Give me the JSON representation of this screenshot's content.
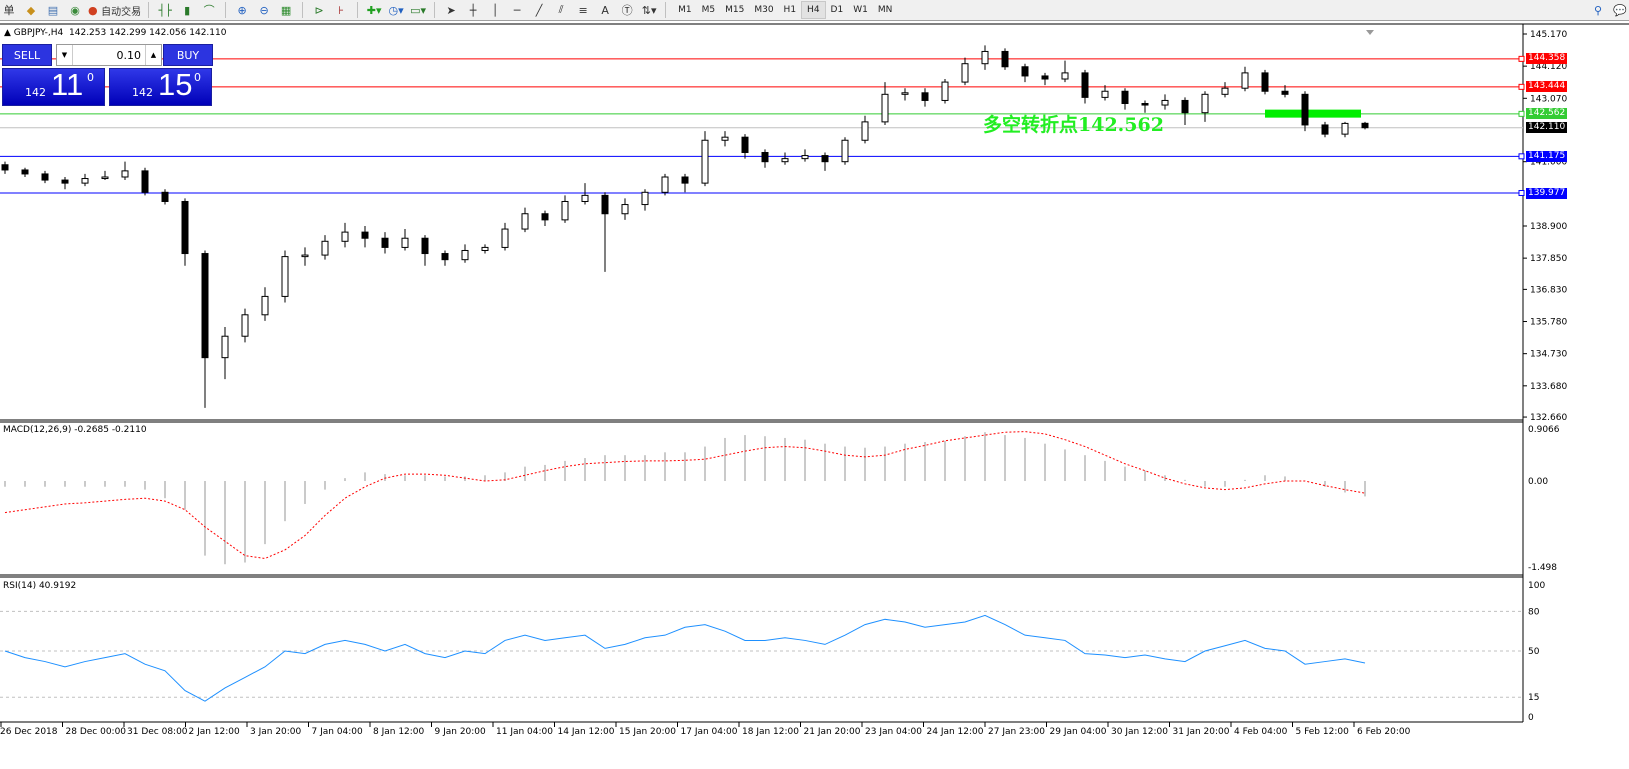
{
  "toolbar": {
    "auto_trading": "自动交易",
    "first_char": "单",
    "timeframes": [
      "M1",
      "M5",
      "M15",
      "M30",
      "H1",
      "H4",
      "D1",
      "W1",
      "MN"
    ],
    "active_timeframe": "H4"
  },
  "chart_header": {
    "symbol": "▲ GBPJPY-,H4",
    "ohlc": "142.253 142.299 142.056 142.110"
  },
  "one_click": {
    "sell": "SELL",
    "buy": "BUY",
    "lot": "0.10",
    "sell_prefix": "142",
    "sell_big": "11",
    "sell_sup": "0",
    "buy_prefix": "142",
    "buy_big": "15",
    "buy_sup": "0"
  },
  "annotation": {
    "text": "多空转折点142.562",
    "color": "#22ee22"
  },
  "levels": [
    {
      "price": "144.358",
      "color": "#ff0000"
    },
    {
      "price": "143.444",
      "color": "#ff0000"
    },
    {
      "price": "142.562",
      "color": "#33cc33"
    },
    {
      "price": "141.175",
      "color": "#0000ff"
    },
    {
      "price": "139.977",
      "color": "#0000ff"
    }
  ],
  "current_price": "142.110",
  "chart_data": [
    {
      "type": "candlestick",
      "title": "GBPJPY-,H4",
      "ylim": [
        132.66,
        145.17
      ],
      "yticks": [
        "145.170",
        "144.120",
        "143.070",
        "141.000",
        "138.900",
        "137.850",
        "136.830",
        "135.780",
        "134.730",
        "133.680",
        "132.660"
      ],
      "xticks": [
        "26 Dec 2018",
        "28 Dec 00:00",
        "31 Dec 08:00",
        "2 Jan 12:00",
        "3 Jan 20:00",
        "7 Jan 04:00",
        "8 Jan 12:00",
        "9 Jan 20:00",
        "11 Jan 04:00",
        "14 Jan 12:00",
        "15 Jan 20:00",
        "17 Jan 04:00",
        "18 Jan 12:00",
        "21 Jan 20:00",
        "23 Jan 04:00",
        "24 Jan 12:00",
        "27 Jan 23:00",
        "29 Jan 04:00",
        "30 Jan 12:00",
        "31 Jan 20:00",
        "4 Feb 04:00",
        "5 Feb 12:00",
        "6 Feb 20:00"
      ],
      "ohlc": [
        [
          140.9,
          141.0,
          140.6,
          140.73
        ],
        [
          140.73,
          140.8,
          140.5,
          140.6
        ],
        [
          140.6,
          140.7,
          140.3,
          140.4
        ],
        [
          140.4,
          140.5,
          140.1,
          140.3
        ],
        [
          140.3,
          140.6,
          140.2,
          140.45
        ],
        [
          140.45,
          140.7,
          140.4,
          140.5
        ],
        [
          140.5,
          141.0,
          140.4,
          140.7
        ],
        [
          140.7,
          140.8,
          139.9,
          140.0
        ],
        [
          140.0,
          140.1,
          139.6,
          139.7
        ],
        [
          139.7,
          139.8,
          137.6,
          138.0
        ],
        [
          138.0,
          138.1,
          132.96,
          134.6
        ],
        [
          134.6,
          135.6,
          133.9,
          135.3
        ],
        [
          135.3,
          136.2,
          135.1,
          136.0
        ],
        [
          136.0,
          136.9,
          135.8,
          136.6
        ],
        [
          136.6,
          138.1,
          136.4,
          137.9
        ],
        [
          137.9,
          138.2,
          137.6,
          137.95
        ],
        [
          137.95,
          138.6,
          137.8,
          138.4
        ],
        [
          138.4,
          139.0,
          138.2,
          138.7
        ],
        [
          138.7,
          138.9,
          138.2,
          138.5
        ],
        [
          138.5,
          138.7,
          138.0,
          138.2
        ],
        [
          138.2,
          138.8,
          138.1,
          138.5
        ],
        [
          138.5,
          138.6,
          137.6,
          138.0
        ],
        [
          138.0,
          138.1,
          137.6,
          137.8
        ],
        [
          137.8,
          138.3,
          137.7,
          138.1
        ],
        [
          138.1,
          138.3,
          138.0,
          138.2
        ],
        [
          138.2,
          139.0,
          138.1,
          138.8
        ],
        [
          138.8,
          139.5,
          138.7,
          139.3
        ],
        [
          139.3,
          139.4,
          138.9,
          139.1
        ],
        [
          139.1,
          139.9,
          139.0,
          139.7
        ],
        [
          139.7,
          140.3,
          139.6,
          139.9
        ],
        [
          139.9,
          140.0,
          137.4,
          139.3
        ],
        [
          139.3,
          139.8,
          139.1,
          139.6
        ],
        [
          139.6,
          140.1,
          139.4,
          140.0
        ],
        [
          140.0,
          140.6,
          139.9,
          140.5
        ],
        [
          140.5,
          140.6,
          140.0,
          140.3
        ],
        [
          140.3,
          142.0,
          140.2,
          141.7
        ],
        [
          141.7,
          142.0,
          141.5,
          141.8
        ],
        [
          141.8,
          141.9,
          141.1,
          141.3
        ],
        [
          141.3,
          141.4,
          140.8,
          141.0
        ],
        [
          141.0,
          141.3,
          140.9,
          141.1
        ],
        [
          141.1,
          141.4,
          141.0,
          141.2
        ],
        [
          141.2,
          141.3,
          140.7,
          141.0
        ],
        [
          141.0,
          141.8,
          140.9,
          141.7
        ],
        [
          141.7,
          142.5,
          141.6,
          142.3
        ],
        [
          142.3,
          143.6,
          142.2,
          143.2
        ],
        [
          143.2,
          143.4,
          143.0,
          143.25
        ],
        [
          143.25,
          143.4,
          142.8,
          143.0
        ],
        [
          143.0,
          143.7,
          142.9,
          143.6
        ],
        [
          143.6,
          144.4,
          143.5,
          144.2
        ],
        [
          144.2,
          144.8,
          144.0,
          144.6
        ],
        [
          144.6,
          144.7,
          144.0,
          144.1
        ],
        [
          144.1,
          144.2,
          143.6,
          143.8
        ],
        [
          143.8,
          143.9,
          143.5,
          143.7
        ],
        [
          143.7,
          144.3,
          143.6,
          143.9
        ],
        [
          143.9,
          144.0,
          142.9,
          143.1
        ],
        [
          143.1,
          143.5,
          143.0,
          143.3
        ],
        [
          143.3,
          143.4,
          142.7,
          142.9
        ],
        [
          142.9,
          143.0,
          142.6,
          142.85
        ],
        [
          142.85,
          143.2,
          142.7,
          143.0
        ],
        [
          143.0,
          143.1,
          142.2,
          142.6
        ],
        [
          142.6,
          143.3,
          142.3,
          143.2
        ],
        [
          143.2,
          143.6,
          143.1,
          143.4
        ],
        [
          143.4,
          144.1,
          143.3,
          143.9
        ],
        [
          143.9,
          144.0,
          143.2,
          143.3
        ],
        [
          143.3,
          143.5,
          143.1,
          143.2
        ],
        [
          143.2,
          143.3,
          142.0,
          142.2
        ],
        [
          142.2,
          142.3,
          141.8,
          141.9
        ],
        [
          141.9,
          142.3,
          141.8,
          142.25
        ],
        [
          142.253,
          142.299,
          142.056,
          142.11
        ]
      ]
    },
    {
      "type": "bar+line",
      "title": "MACD(12,26,9) -0.2685 -0.2110",
      "yticks": [
        "0.9066",
        "0.00",
        "-1.498"
      ],
      "ylim": [
        -1.498,
        0.9066
      ],
      "macd": [
        -0.1,
        -0.1,
        -0.1,
        -0.1,
        -0.1,
        -0.1,
        -0.1,
        -0.15,
        -0.3,
        -0.5,
        -1.3,
        -1.45,
        -1.42,
        -1.1,
        -0.7,
        -0.4,
        -0.15,
        0.05,
        0.15,
        0.12,
        0.1,
        0.1,
        0.08,
        0.08,
        0.1,
        0.15,
        0.25,
        0.28,
        0.35,
        0.4,
        0.45,
        0.45,
        0.45,
        0.5,
        0.5,
        0.6,
        0.75,
        0.8,
        0.78,
        0.75,
        0.72,
        0.65,
        0.6,
        0.58,
        0.6,
        0.65,
        0.68,
        0.7,
        0.78,
        0.85,
        0.8,
        0.75,
        0.65,
        0.55,
        0.45,
        0.35,
        0.25,
        0.18,
        0.1,
        0.02,
        -0.1,
        -0.1,
        0.02,
        0.1,
        0.08,
        0.0,
        -0.1,
        -0.2,
        -0.2685
      ],
      "signal": [
        -0.55,
        -0.5,
        -0.45,
        -0.4,
        -0.38,
        -0.35,
        -0.32,
        -0.3,
        -0.35,
        -0.5,
        -0.8,
        -1.05,
        -1.3,
        -1.35,
        -1.2,
        -0.95,
        -0.6,
        -0.3,
        -0.1,
        0.05,
        0.12,
        0.12,
        0.1,
        0.05,
        0.0,
        0.02,
        0.1,
        0.18,
        0.25,
        0.3,
        0.32,
        0.34,
        0.35,
        0.35,
        0.36,
        0.38,
        0.45,
        0.52,
        0.58,
        0.6,
        0.58,
        0.52,
        0.45,
        0.42,
        0.45,
        0.55,
        0.62,
        0.7,
        0.75,
        0.8,
        0.85,
        0.86,
        0.82,
        0.72,
        0.6,
        0.45,
        0.3,
        0.18,
        0.05,
        -0.05,
        -0.12,
        -0.15,
        -0.12,
        -0.05,
        0.0,
        0.0,
        -0.08,
        -0.15,
        -0.211
      ]
    },
    {
      "type": "line",
      "title": "RSI(14) 40.9192",
      "yticks": [
        "100",
        "80",
        "50",
        "15",
        "0"
      ],
      "levels": [
        80,
        50,
        15
      ],
      "ylim": [
        0,
        100
      ],
      "values": [
        50,
        45,
        42,
        38,
        42,
        45,
        48,
        40,
        35,
        20,
        12,
        22,
        30,
        38,
        50,
        48,
        55,
        58,
        55,
        50,
        55,
        48,
        45,
        50,
        48,
        58,
        62,
        58,
        60,
        62,
        52,
        55,
        60,
        62,
        68,
        70,
        65,
        58,
        58,
        60,
        58,
        55,
        62,
        70,
        74,
        72,
        68,
        70,
        72,
        77,
        70,
        62,
        60,
        58,
        48,
        47,
        45,
        47,
        44,
        42,
        50,
        54,
        58,
        52,
        50,
        40,
        42,
        44,
        40.9192
      ]
    }
  ]
}
